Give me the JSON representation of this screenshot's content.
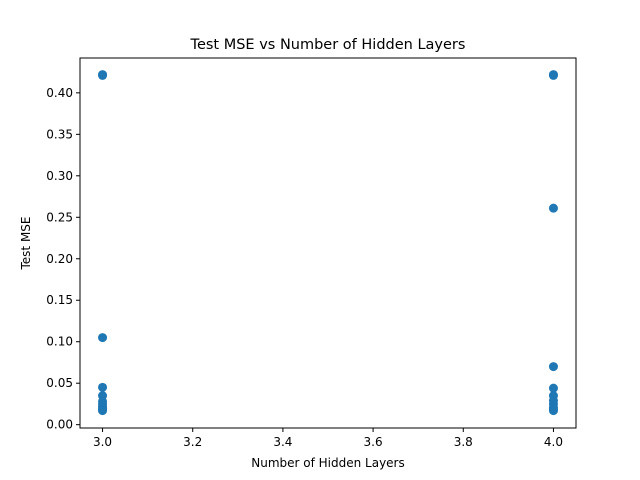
{
  "chart_data": {
    "type": "scatter",
    "title": "Test MSE vs Number of Hidden Layers",
    "xlabel": "Number of Hidden Layers",
    "ylabel": "Test MSE",
    "xlim": [
      2.95,
      4.05
    ],
    "ylim": [
      -0.004,
      0.442
    ],
    "xticks": [
      3.0,
      3.2,
      3.4,
      3.6,
      3.8,
      4.0
    ],
    "xtick_labels": [
      "3.0",
      "3.2",
      "3.4",
      "3.6",
      "3.8",
      "4.0"
    ],
    "yticks": [
      0.0,
      0.05,
      0.1,
      0.15,
      0.2,
      0.25,
      0.3,
      0.35,
      0.4
    ],
    "ytick_labels": [
      "0.00",
      "0.05",
      "0.10",
      "0.15",
      "0.20",
      "0.25",
      "0.30",
      "0.35",
      "0.40"
    ],
    "grid": false,
    "legend": "none",
    "color": "#1f77b4",
    "series": [
      {
        "x": [
          3,
          3,
          3,
          3,
          3,
          3,
          3,
          3,
          3,
          3,
          3,
          4,
          4,
          4,
          4,
          4,
          4,
          4,
          4,
          4,
          4,
          4
        ],
        "y": [
          0.422,
          0.421,
          0.105,
          0.045,
          0.035,
          0.028,
          0.025,
          0.022,
          0.02,
          0.018,
          0.017,
          0.422,
          0.421,
          0.261,
          0.07,
          0.044,
          0.035,
          0.029,
          0.025,
          0.021,
          0.019,
          0.017
        ]
      }
    ]
  }
}
